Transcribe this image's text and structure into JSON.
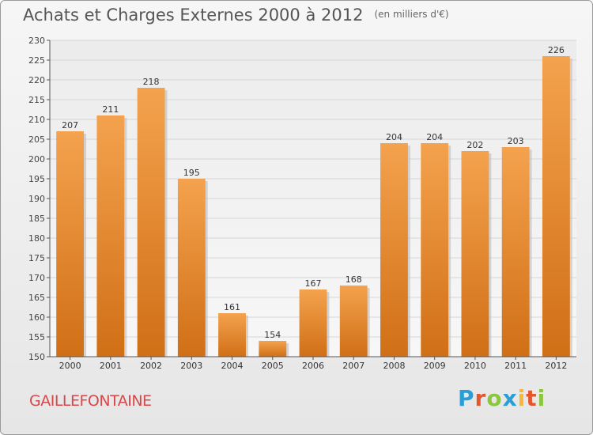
{
  "title": "Achats et Charges Externes 2000 à 2012",
  "title_unit": "(en milliers d'€)",
  "city": "GAILLEFONTAINE",
  "logo": {
    "letters": [
      "P",
      "r",
      "o",
      "x",
      "i",
      "t",
      "i"
    ],
    "colors": [
      "#2a9fd6",
      "#e4572e",
      "#8cc63f",
      "#2a9fd6",
      "#f7b733",
      "#e4572e",
      "#8cc63f"
    ]
  },
  "chart_data": {
    "type": "bar",
    "categories": [
      "2000",
      "2001",
      "2002",
      "2003",
      "2004",
      "2005",
      "2006",
      "2007",
      "2008",
      "2009",
      "2010",
      "2011",
      "2012"
    ],
    "values": [
      207,
      211,
      218,
      195,
      161,
      154,
      167,
      168,
      204,
      204,
      202,
      203,
      226
    ],
    "ylim": [
      150,
      230
    ],
    "yticks": [
      150,
      155,
      160,
      165,
      170,
      175,
      180,
      185,
      190,
      195,
      200,
      205,
      210,
      215,
      220,
      225,
      230
    ],
    "grid": true,
    "bar_color_top": "#f4a24e",
    "bar_color_bottom": "#d06f16",
    "grid_color": "#d6d6d6",
    "axis_color": "#555555"
  }
}
